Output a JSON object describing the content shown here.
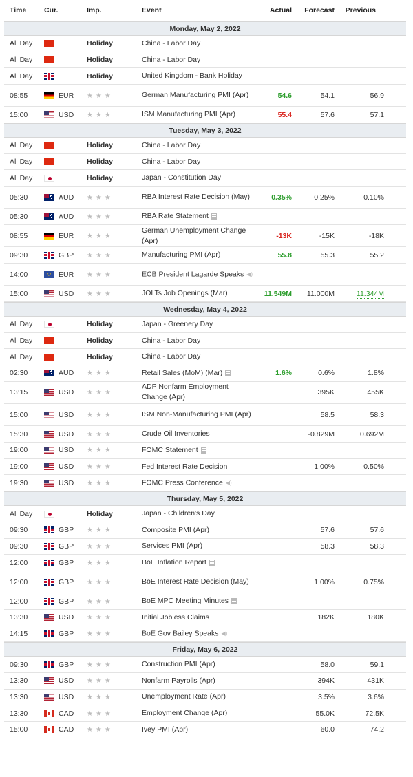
{
  "header": {
    "time": "Time",
    "cur": "Cur.",
    "imp": "Imp.",
    "event": "Event",
    "actual": "Actual",
    "forecast": "Forecast",
    "previous": "Previous"
  },
  "days": [
    {
      "title": "Monday, May 2, 2022",
      "rows": [
        {
          "time": "All Day",
          "flag": "cn",
          "cur": "",
          "imp": "Holiday",
          "event": "China - Labor Day"
        },
        {
          "time": "All Day",
          "flag": "cn",
          "cur": "",
          "imp": "Holiday",
          "event": "China - Labor Day"
        },
        {
          "time": "All Day",
          "flag": "gb",
          "cur": "",
          "imp": "Holiday",
          "event": "United Kingdom - Bank Holiday"
        },
        {
          "time": "08:55",
          "flag": "de",
          "cur": "EUR",
          "imp": "",
          "event": "German Manufacturing PMI (Apr)",
          "actual": "54.6",
          "actual_color": "green",
          "forecast": "54.1",
          "previous": "56.9",
          "tall": true
        },
        {
          "time": "15:00",
          "flag": "us",
          "cur": "USD",
          "imp": "",
          "event": "ISM Manufacturing PMI (Apr)",
          "actual": "55.4",
          "actual_color": "red",
          "forecast": "57.6",
          "previous": "57.1"
        }
      ]
    },
    {
      "title": "Tuesday, May 3, 2022",
      "rows": [
        {
          "time": "All Day",
          "flag": "cn",
          "cur": "",
          "imp": "Holiday",
          "event": "China - Labor Day"
        },
        {
          "time": "All Day",
          "flag": "cn",
          "cur": "",
          "imp": "Holiday",
          "event": "China - Labor Day"
        },
        {
          "time": "All Day",
          "flag": "jp",
          "cur": "",
          "imp": "Holiday",
          "event": "Japan - Constitution Day"
        },
        {
          "time": "05:30",
          "flag": "au",
          "cur": "AUD",
          "imp": "",
          "event": "RBA Interest Rate Decision (May)",
          "actual": "0.35%",
          "actual_color": "green",
          "forecast": "0.25%",
          "previous": "0.10%",
          "tall": true
        },
        {
          "time": "05:30",
          "flag": "au",
          "cur": "AUD",
          "imp": "",
          "event": "RBA Rate Statement",
          "icon": "doc"
        },
        {
          "time": "08:55",
          "flag": "de",
          "cur": "EUR",
          "imp": "",
          "event": "German Unemployment Change (Apr)",
          "actual": "-13K",
          "actual_color": "red",
          "forecast": "-15K",
          "previous": "-18K",
          "tall": true
        },
        {
          "time": "09:30",
          "flag": "gb",
          "cur": "GBP",
          "imp": "",
          "event": "Manufacturing PMI (Apr)",
          "actual": "55.8",
          "actual_color": "green",
          "forecast": "55.3",
          "previous": "55.2"
        },
        {
          "time": "14:00",
          "flag": "eu",
          "cur": "EUR",
          "imp": "",
          "event": "ECB President Lagarde Speaks",
          "icon": "speaker",
          "tall": true
        },
        {
          "time": "15:00",
          "flag": "us",
          "cur": "USD",
          "imp": "",
          "event": "JOLTs Job Openings (Mar)",
          "actual": "11.549M",
          "actual_color": "green",
          "forecast": "11.000M",
          "previous": "11.344M",
          "previous_hl": true
        }
      ]
    },
    {
      "title": "Wednesday, May 4, 2022",
      "rows": [
        {
          "time": "All Day",
          "flag": "jp",
          "cur": "",
          "imp": "Holiday",
          "event": "Japan - Greenery Day"
        },
        {
          "time": "All Day",
          "flag": "cn",
          "cur": "",
          "imp": "Holiday",
          "event": "China - Labor Day"
        },
        {
          "time": "All Day",
          "flag": "cn",
          "cur": "",
          "imp": "Holiday",
          "event": "China - Labor Day"
        },
        {
          "time": "02:30",
          "flag": "au",
          "cur": "AUD",
          "imp": "",
          "event": "Retail Sales (MoM) (Mar)",
          "icon": "doc",
          "actual": "1.6%",
          "actual_color": "green",
          "forecast": "0.6%",
          "previous": "1.8%"
        },
        {
          "time": "13:15",
          "flag": "us",
          "cur": "USD",
          "imp": "",
          "event": "ADP Nonfarm Employment Change (Apr)",
          "forecast": "395K",
          "previous": "455K",
          "tall": true
        },
        {
          "time": "15:00",
          "flag": "us",
          "cur": "USD",
          "imp": "",
          "event": "ISM Non-Manufacturing PMI (Apr)",
          "forecast": "58.5",
          "previous": "58.3",
          "tall": true
        },
        {
          "time": "15:30",
          "flag": "us",
          "cur": "USD",
          "imp": "",
          "event": "Crude Oil Inventories",
          "forecast": "-0.829M",
          "previous": "0.692M"
        },
        {
          "time": "19:00",
          "flag": "us",
          "cur": "USD",
          "imp": "",
          "event": "FOMC Statement",
          "icon": "doc"
        },
        {
          "time": "19:00",
          "flag": "us",
          "cur": "USD",
          "imp": "",
          "event": "Fed Interest Rate Decision",
          "forecast": "1.00%",
          "previous": "0.50%"
        },
        {
          "time": "19:30",
          "flag": "us",
          "cur": "USD",
          "imp": "",
          "event": "FOMC Press Conference",
          "icon": "speaker"
        }
      ]
    },
    {
      "title": "Thursday, May 5, 2022",
      "rows": [
        {
          "time": "All Day",
          "flag": "jp",
          "cur": "",
          "imp": "Holiday",
          "event": "Japan - Children's Day"
        },
        {
          "time": "09:30",
          "flag": "gb",
          "cur": "GBP",
          "imp": "",
          "event": "Composite PMI (Apr)",
          "forecast": "57.6",
          "previous": "57.6"
        },
        {
          "time": "09:30",
          "flag": "gb",
          "cur": "GBP",
          "imp": "",
          "event": "Services PMI (Apr)",
          "forecast": "58.3",
          "previous": "58.3"
        },
        {
          "time": "12:00",
          "flag": "gb",
          "cur": "GBP",
          "imp": "",
          "event": "BoE Inflation Report",
          "icon": "doc"
        },
        {
          "time": "12:00",
          "flag": "gb",
          "cur": "GBP",
          "imp": "",
          "event": "BoE Interest Rate Decision (May)",
          "forecast": "1.00%",
          "previous": "0.75%",
          "tall": true
        },
        {
          "time": "12:00",
          "flag": "gb",
          "cur": "GBP",
          "imp": "",
          "event": "BoE MPC Meeting Minutes",
          "icon": "doc"
        },
        {
          "time": "13:30",
          "flag": "us",
          "cur": "USD",
          "imp": "",
          "event": "Initial Jobless Claims",
          "forecast": "182K",
          "previous": "180K"
        },
        {
          "time": "14:15",
          "flag": "gb",
          "cur": "GBP",
          "imp": "",
          "event": "BoE Gov Bailey Speaks",
          "icon": "speaker"
        }
      ]
    },
    {
      "title": "Friday, May 6, 2022",
      "rows": [
        {
          "time": "09:30",
          "flag": "gb",
          "cur": "GBP",
          "imp": "",
          "event": "Construction PMI (Apr)",
          "forecast": "58.0",
          "previous": "59.1"
        },
        {
          "time": "13:30",
          "flag": "us",
          "cur": "USD",
          "imp": "",
          "event": "Nonfarm Payrolls (Apr)",
          "forecast": "394K",
          "previous": "431K"
        },
        {
          "time": "13:30",
          "flag": "us",
          "cur": "USD",
          "imp": "",
          "event": "Unemployment Rate (Apr)",
          "forecast": "3.5%",
          "previous": "3.6%"
        },
        {
          "time": "13:30",
          "flag": "ca",
          "cur": "CAD",
          "imp": "",
          "event": "Employment Change (Apr)",
          "forecast": "55.0K",
          "previous": "72.5K"
        },
        {
          "time": "15:00",
          "flag": "ca",
          "cur": "CAD",
          "imp": "",
          "event": "Ivey PMI (Apr)",
          "forecast": "60.0",
          "previous": "74.2"
        }
      ]
    }
  ],
  "colors": {
    "green": "#2e9e2e",
    "red": "#d9231c",
    "day_bg": "#e9edf1"
  }
}
